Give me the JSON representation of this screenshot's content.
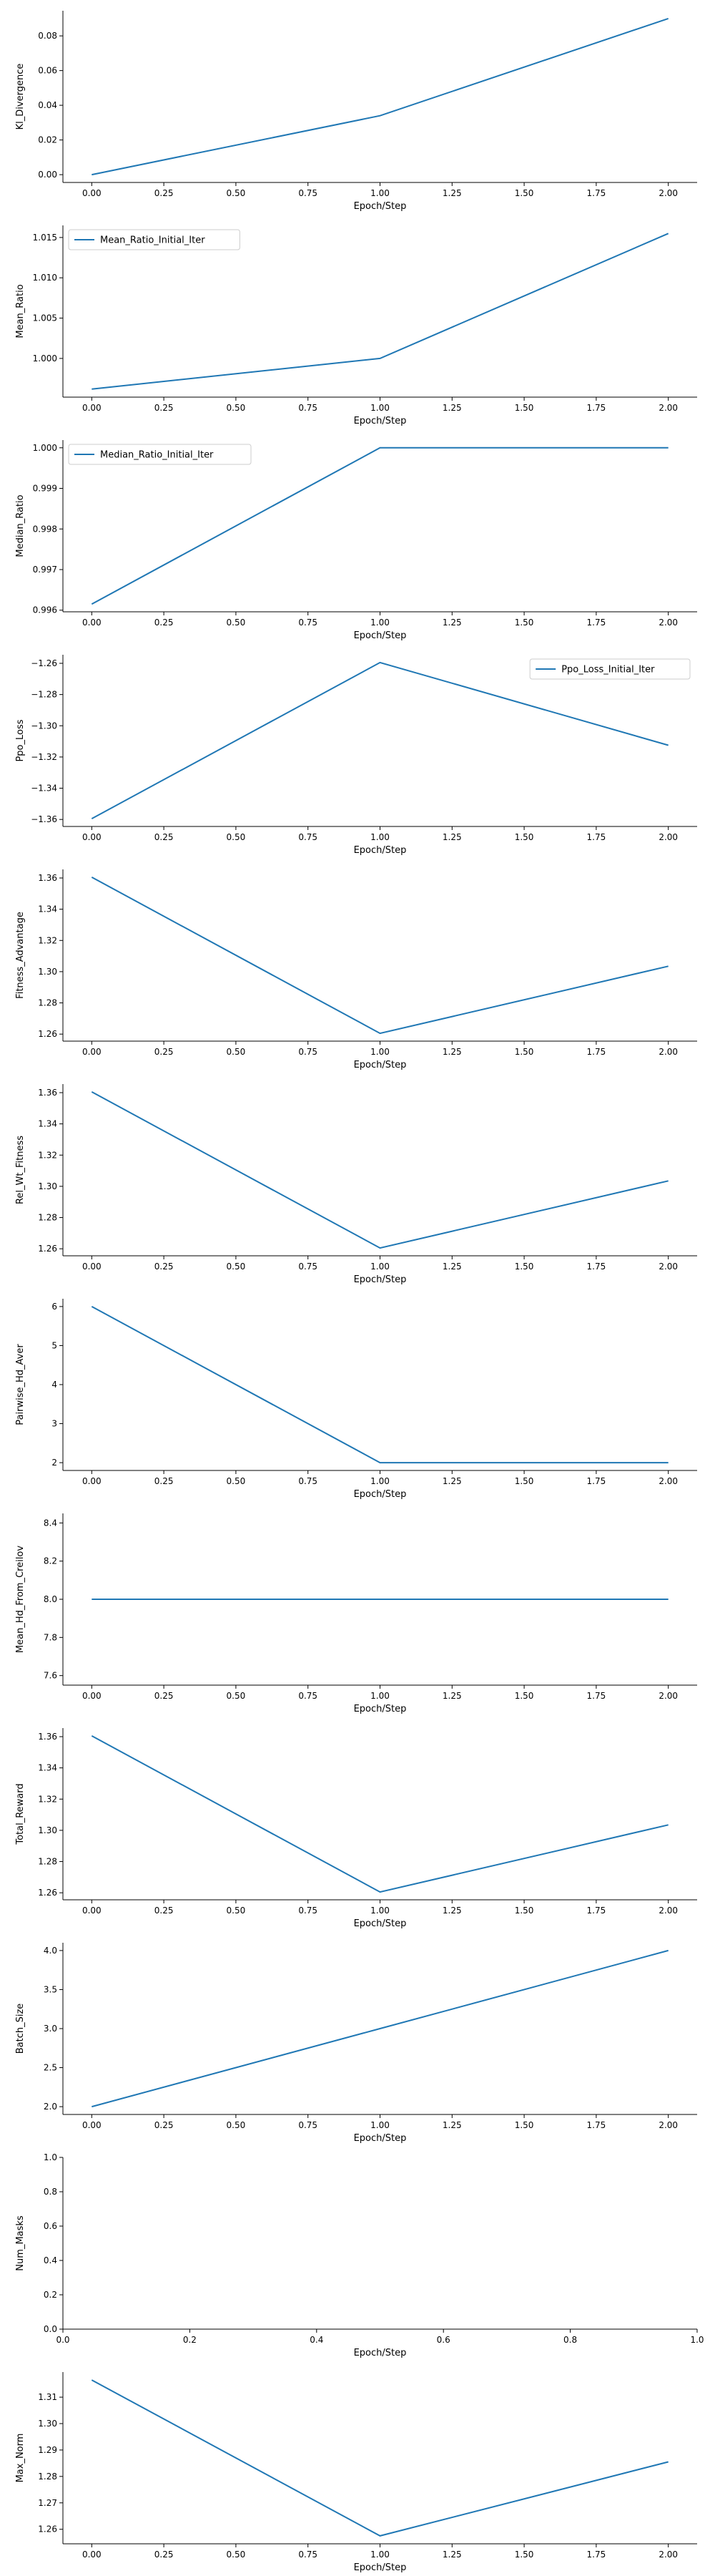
{
  "colors": {
    "line": "#1f77b4",
    "axis": "#000000",
    "legend_border": "#cccccc"
  },
  "chart_data": [
    {
      "type": "line",
      "ylabel": "Kl_Divergence",
      "xlabel": "Epoch/Step",
      "x": [
        0,
        1,
        2
      ],
      "series": [
        {
          "values": [
            0.0,
            0.034,
            0.09
          ]
        }
      ],
      "xlim": [
        -0.1,
        2.1
      ],
      "ylim": [
        -0.0045,
        0.0945
      ],
      "xticks": [
        0,
        0.25,
        0.5,
        0.75,
        1.0,
        1.25,
        1.5,
        1.75,
        2.0
      ],
      "xtick_labels": [
        "0.00",
        "0.25",
        "0.50",
        "0.75",
        "1.00",
        "1.25",
        "1.50",
        "1.75",
        "2.00"
      ],
      "yticks": [
        0.0,
        0.02,
        0.04,
        0.06,
        0.08
      ],
      "ytick_labels": [
        "0.00",
        "0.02",
        "0.04",
        "0.06",
        "0.08"
      ],
      "legend": null,
      "grid": false
    },
    {
      "type": "line",
      "ylabel": "Mean_Ratio",
      "xlabel": "Epoch/Step",
      "x": [
        0,
        1,
        2
      ],
      "series": [
        {
          "name": "Mean_Ratio_Initial_Iter",
          "values": [
            0.9962,
            1.0,
            1.0155
          ]
        }
      ],
      "xlim": [
        -0.1,
        2.1
      ],
      "ylim": [
        0.9952,
        1.0165
      ],
      "xticks": [
        0,
        0.25,
        0.5,
        0.75,
        1.0,
        1.25,
        1.5,
        1.75,
        2.0
      ],
      "xtick_labels": [
        "0.00",
        "0.25",
        "0.50",
        "0.75",
        "1.00",
        "1.25",
        "1.50",
        "1.75",
        "2.00"
      ],
      "yticks": [
        1.0,
        1.005,
        1.01,
        1.015
      ],
      "ytick_labels": [
        "1.000",
        "1.005",
        "1.010",
        "1.015"
      ],
      "legend": "upper-left",
      "grid": false
    },
    {
      "type": "line",
      "ylabel": "Median_Ratio",
      "xlabel": "Epoch/Step",
      "x": [
        0,
        1,
        2
      ],
      "series": [
        {
          "name": "Median_Ratio_Initial_Iter",
          "values": [
            0.99615,
            1.0,
            1.0
          ]
        }
      ],
      "xlim": [
        -0.1,
        2.1
      ],
      "ylim": [
        0.99596,
        1.00019
      ],
      "xticks": [
        0,
        0.25,
        0.5,
        0.75,
        1.0,
        1.25,
        1.5,
        1.75,
        2.0
      ],
      "xtick_labels": [
        "0.00",
        "0.25",
        "0.50",
        "0.75",
        "1.00",
        "1.25",
        "1.50",
        "1.75",
        "2.00"
      ],
      "yticks": [
        0.996,
        0.997,
        0.998,
        0.999,
        1.0
      ],
      "ytick_labels": [
        "0.996",
        "0.997",
        "0.998",
        "0.999",
        "1.000"
      ],
      "legend": "upper-left",
      "grid": false
    },
    {
      "type": "line",
      "ylabel": "Ppo_Loss",
      "xlabel": "Epoch/Step",
      "x": [
        0,
        1,
        2
      ],
      "series": [
        {
          "name": "Ppo_Loss_Initial_Iter",
          "values": [
            -1.3595,
            -1.2595,
            -1.3125
          ]
        }
      ],
      "xlim": [
        -0.1,
        2.1
      ],
      "ylim": [
        -1.3645,
        -1.2545
      ],
      "xticks": [
        0,
        0.25,
        0.5,
        0.75,
        1.0,
        1.25,
        1.5,
        1.75,
        2.0
      ],
      "xtick_labels": [
        "0.00",
        "0.25",
        "0.50",
        "0.75",
        "1.00",
        "1.25",
        "1.50",
        "1.75",
        "2.00"
      ],
      "yticks": [
        -1.36,
        -1.34,
        -1.32,
        -1.3,
        -1.28,
        -1.26
      ],
      "ytick_labels": [
        "−1.36",
        "−1.34",
        "−1.32",
        "−1.30",
        "−1.28",
        "−1.26"
      ],
      "legend": "upper-right",
      "grid": false
    },
    {
      "type": "line",
      "ylabel": "Fitness_Advantage",
      "xlabel": "Epoch/Step",
      "x": [
        0,
        1,
        2
      ],
      "series": [
        {
          "values": [
            1.3605,
            1.2605,
            1.3035
          ]
        }
      ],
      "xlim": [
        -0.1,
        2.1
      ],
      "ylim": [
        1.2555,
        1.3655
      ],
      "xticks": [
        0,
        0.25,
        0.5,
        0.75,
        1.0,
        1.25,
        1.5,
        1.75,
        2.0
      ],
      "xtick_labels": [
        "0.00",
        "0.25",
        "0.50",
        "0.75",
        "1.00",
        "1.25",
        "1.50",
        "1.75",
        "2.00"
      ],
      "yticks": [
        1.26,
        1.28,
        1.3,
        1.32,
        1.34,
        1.36
      ],
      "ytick_labels": [
        "1.26",
        "1.28",
        "1.30",
        "1.32",
        "1.34",
        "1.36"
      ],
      "legend": null,
      "grid": false
    },
    {
      "type": "line",
      "ylabel": "Rel_Wt_Fitness",
      "xlabel": "Epoch/Step",
      "x": [
        0,
        1,
        2
      ],
      "series": [
        {
          "values": [
            1.3605,
            1.2605,
            1.3035
          ]
        }
      ],
      "xlim": [
        -0.1,
        2.1
      ],
      "ylim": [
        1.2555,
        1.3655
      ],
      "xticks": [
        0,
        0.25,
        0.5,
        0.75,
        1.0,
        1.25,
        1.5,
        1.75,
        2.0
      ],
      "xtick_labels": [
        "0.00",
        "0.25",
        "0.50",
        "0.75",
        "1.00",
        "1.25",
        "1.50",
        "1.75",
        "2.00"
      ],
      "yticks": [
        1.26,
        1.28,
        1.3,
        1.32,
        1.34,
        1.36
      ],
      "ytick_labels": [
        "1.26",
        "1.28",
        "1.30",
        "1.32",
        "1.34",
        "1.36"
      ],
      "legend": null,
      "grid": false
    },
    {
      "type": "line",
      "ylabel": "Pairwise_Hd_Aver",
      "xlabel": "Epoch/Step",
      "x": [
        0,
        1,
        2
      ],
      "series": [
        {
          "values": [
            6,
            2,
            2
          ]
        }
      ],
      "xlim": [
        -0.1,
        2.1
      ],
      "ylim": [
        1.8,
        6.2
      ],
      "xticks": [
        0,
        0.25,
        0.5,
        0.75,
        1.0,
        1.25,
        1.5,
        1.75,
        2.0
      ],
      "xtick_labels": [
        "0.00",
        "0.25",
        "0.50",
        "0.75",
        "1.00",
        "1.25",
        "1.50",
        "1.75",
        "2.00"
      ],
      "yticks": [
        2,
        3,
        4,
        5,
        6
      ],
      "ytick_labels": [
        "2",
        "3",
        "4",
        "5",
        "6"
      ],
      "legend": null,
      "grid": false
    },
    {
      "type": "line",
      "ylabel": "Mean_Hd_From_Creilov",
      "xlabel": "Epoch/Step",
      "x": [
        0,
        1,
        2
      ],
      "series": [
        {
          "values": [
            8.0,
            8.0,
            8.0
          ]
        }
      ],
      "xlim": [
        -0.1,
        2.1
      ],
      "ylim": [
        7.55,
        8.45
      ],
      "xticks": [
        0,
        0.25,
        0.5,
        0.75,
        1.0,
        1.25,
        1.5,
        1.75,
        2.0
      ],
      "xtick_labels": [
        "0.00",
        "0.25",
        "0.50",
        "0.75",
        "1.00",
        "1.25",
        "1.50",
        "1.75",
        "2.00"
      ],
      "yticks": [
        7.6,
        7.8,
        8.0,
        8.2,
        8.4
      ],
      "ytick_labels": [
        "7.6",
        "7.8",
        "8.0",
        "8.2",
        "8.4"
      ],
      "legend": null,
      "grid": false
    },
    {
      "type": "line",
      "ylabel": "Total_Reward",
      "xlabel": "Epoch/Step",
      "x": [
        0,
        1,
        2
      ],
      "series": [
        {
          "values": [
            1.3605,
            1.2605,
            1.3035
          ]
        }
      ],
      "xlim": [
        -0.1,
        2.1
      ],
      "ylim": [
        1.2555,
        1.3655
      ],
      "xticks": [
        0,
        0.25,
        0.5,
        0.75,
        1.0,
        1.25,
        1.5,
        1.75,
        2.0
      ],
      "xtick_labels": [
        "0.00",
        "0.25",
        "0.50",
        "0.75",
        "1.00",
        "1.25",
        "1.50",
        "1.75",
        "2.00"
      ],
      "yticks": [
        1.26,
        1.28,
        1.3,
        1.32,
        1.34,
        1.36
      ],
      "ytick_labels": [
        "1.26",
        "1.28",
        "1.30",
        "1.32",
        "1.34",
        "1.36"
      ],
      "legend": null,
      "grid": false
    },
    {
      "type": "line",
      "ylabel": "Batch_Size",
      "xlabel": "Epoch/Step",
      "x": [
        0,
        1,
        2
      ],
      "series": [
        {
          "values": [
            2.0,
            3.0,
            4.0
          ]
        }
      ],
      "xlim": [
        -0.1,
        2.1
      ],
      "ylim": [
        1.9,
        4.1
      ],
      "xticks": [
        0,
        0.25,
        0.5,
        0.75,
        1.0,
        1.25,
        1.5,
        1.75,
        2.0
      ],
      "xtick_labels": [
        "0.00",
        "0.25",
        "0.50",
        "0.75",
        "1.00",
        "1.25",
        "1.50",
        "1.75",
        "2.00"
      ],
      "yticks": [
        2.0,
        2.5,
        3.0,
        3.5,
        4.0
      ],
      "ytick_labels": [
        "2.0",
        "2.5",
        "3.0",
        "3.5",
        "4.0"
      ],
      "legend": null,
      "grid": false
    },
    {
      "type": "line",
      "ylabel": "Num_Masks",
      "xlabel": "Epoch/Step",
      "x": [],
      "series": [],
      "xlim": [
        0.0,
        1.0
      ],
      "ylim": [
        0.0,
        1.0
      ],
      "xticks": [
        0.0,
        0.2,
        0.4,
        0.6,
        0.8,
        1.0
      ],
      "xtick_labels": [
        "0.0",
        "0.2",
        "0.4",
        "0.6",
        "0.8",
        "1.0"
      ],
      "yticks": [
        0.0,
        0.2,
        0.4,
        0.6,
        0.8,
        1.0
      ],
      "ytick_labels": [
        "0.0",
        "0.2",
        "0.4",
        "0.6",
        "0.8",
        "1.0"
      ],
      "legend": null,
      "grid": false
    },
    {
      "type": "line",
      "ylabel": "Max_Norm",
      "xlabel": "Epoch/Step",
      "x": [
        0,
        1,
        2
      ],
      "series": [
        {
          "values": [
            1.3165,
            1.2575,
            1.2855
          ]
        }
      ],
      "xlim": [
        -0.1,
        2.1
      ],
      "ylim": [
        1.2545,
        1.3195
      ],
      "xticks": [
        0,
        0.25,
        0.5,
        0.75,
        1.0,
        1.25,
        1.5,
        1.75,
        2.0
      ],
      "xtick_labels": [
        "0.00",
        "0.25",
        "0.50",
        "0.75",
        "1.00",
        "1.25",
        "1.50",
        "1.75",
        "2.00"
      ],
      "yticks": [
        1.26,
        1.27,
        1.28,
        1.29,
        1.3,
        1.31
      ],
      "ytick_labels": [
        "1.26",
        "1.27",
        "1.28",
        "1.29",
        "1.30",
        "1.31"
      ],
      "legend": null,
      "grid": false
    }
  ]
}
